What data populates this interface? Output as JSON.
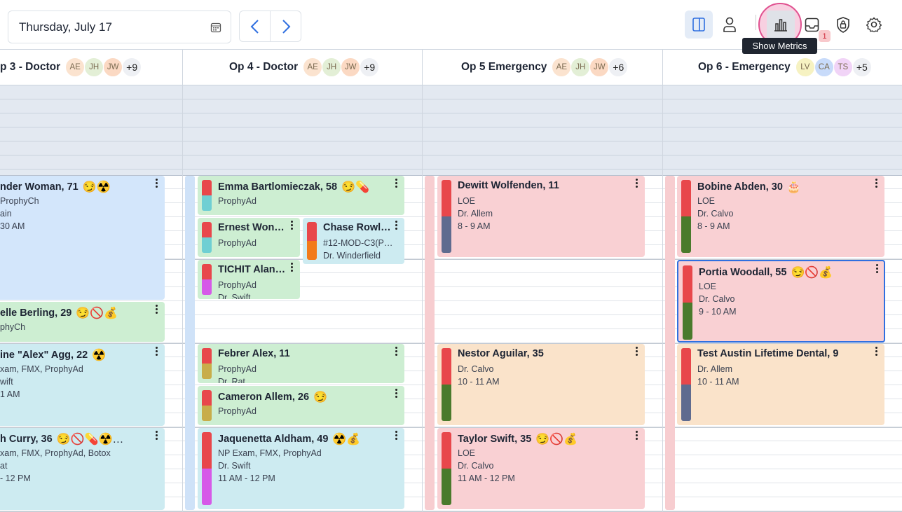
{
  "toolbar": {
    "date": "Thursday, July 17",
    "tooltip": "Show Metrics",
    "inbox_badge": "1"
  },
  "columns": [
    {
      "title": "p 3 - Doctor",
      "avatars": [
        "AE",
        "JH",
        "JW",
        "+9"
      ],
      "appointments": [
        {
          "name": "nder Woman, 71",
          "icons": "😏☢️",
          "details": [
            "ProphyCh",
            "ain",
            "30 AM"
          ]
        },
        {
          "name": "elle Berling, 29",
          "icons": "😏🚫💰",
          "details": [
            "phyCh"
          ]
        },
        {
          "name": "ine \"Alex\" Agg, 22",
          "icons": "☢️",
          "details": [
            "xam, FMX, ProphyAd",
            "wift",
            "1 AM"
          ]
        },
        {
          "name": "h Curry, 36",
          "icons": "😏🚫💊☢️…",
          "details": [
            "xam, FMX, ProphyAd, Botox",
            "at",
            "- 12 PM"
          ]
        }
      ]
    },
    {
      "title": "Op 4 - Doctor",
      "avatars": [
        "AE",
        "JH",
        "JW",
        "+9"
      ],
      "appointments": [
        {
          "name": "Emma Bartlomieczak, 58",
          "icons": "😏💊",
          "details": [
            "ProphyAd"
          ]
        },
        {
          "name": "Ernest Won…",
          "details": [
            "ProphyAd"
          ]
        },
        {
          "name": "Chase Rowl…",
          "details": [
            "#12-MOD-C3(P…",
            "Dr. Winderfield"
          ]
        },
        {
          "name": "TICHIT Alan…",
          "details": [
            "ProphyAd",
            "Dr. Swift"
          ]
        },
        {
          "name": "Febrer Alex, 11",
          "details": [
            "ProphyAd",
            "Dr. Rat"
          ]
        },
        {
          "name": "Cameron Allem, 26",
          "icons": "😏",
          "details": [
            "ProphyAd"
          ]
        },
        {
          "name": "Jaquenetta Aldham, 49",
          "icons": "☢️💰",
          "details": [
            "NP Exam, FMX, ProphyAd",
            "Dr. Swift",
            "11 AM - 12 PM"
          ]
        }
      ]
    },
    {
      "title": "Op 5 Emergency",
      "avatars": [
        "AE",
        "JH",
        "JW",
        "+6"
      ],
      "appointments": [
        {
          "name": "Dewitt Wolfenden, 11",
          "details": [
            "LOE",
            "Dr. Allem",
            "8 - 9 AM"
          ]
        },
        {
          "name": "Nestor Aguilar, 35",
          "details": [
            "Dr. Calvo",
            "10 - 11 AM"
          ]
        },
        {
          "name": "Taylor Swift, 35",
          "icons": "😏🚫💰",
          "details": [
            "LOE",
            "Dr. Calvo",
            "11 AM - 12 PM"
          ]
        }
      ]
    },
    {
      "title": "Op 6 - Emergency",
      "avatars": [
        "LV",
        "CA",
        "TS",
        "+5"
      ],
      "appointments": [
        {
          "name": "Bobine Abden, 30",
          "icons": "🎂",
          "details": [
            "LOE",
            "Dr. Calvo",
            "8 - 9 AM"
          ]
        },
        {
          "name": "Portia Woodall, 55",
          "icons": "😏🚫💰",
          "details": [
            "LOE",
            "Dr. Calvo",
            "9 - 10 AM"
          ]
        },
        {
          "name": "Test Austin Lifetime Dental, 9",
          "details": [
            "Dr. Allem",
            "10 - 11 AM"
          ]
        }
      ]
    }
  ]
}
